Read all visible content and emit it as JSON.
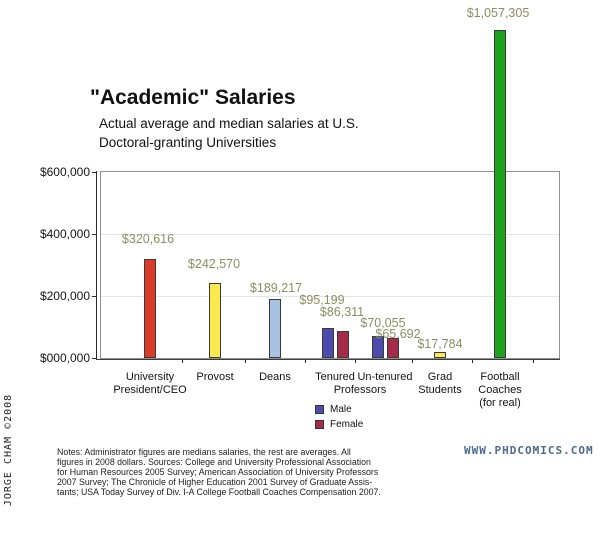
{
  "credit": "JORGE CHAM ©2008",
  "title": "\"Academic\" Salaries",
  "subtitle_lines": [
    "Actual average and median salaries at U.S.",
    "Doctoral-granting Universities"
  ],
  "watermark": "WWW.PHDCOMICS.COM",
  "notes_lines": [
    "Notes: Administrator figures are medians salaries, the rest are averages. All",
    "figures in 2008 dollars. Sources: College and University Professional Association",
    "for Human Resources 2005 Survey; American Association of University Professors",
    "2007 Survey; The Chronicle of Higher Education 2001 Survey of Graduate Assis-",
    "tants; USA Today Survey of Div. I-A College Football Coaches Compensation 2007."
  ],
  "chart_data": {
    "type": "bar",
    "title": "\"Academic\" Salaries",
    "subtitle": "Actual average and median salaries at U.S. Doctoral-granting Universities",
    "xlabel": "",
    "ylabel": "",
    "ylim": [
      0,
      600000
    ],
    "grid": true,
    "gridline_values": [
      200000,
      400000
    ],
    "gridline_color": "#dce5f0",
    "value_label_color": "#8b8e60",
    "legend_position": "below-professors",
    "y_ticks": [
      {
        "label": "$600,000",
        "value": 600000
      },
      {
        "label": "$400,000",
        "value": 400000
      },
      {
        "label": "$200,000",
        "value": 200000
      },
      {
        "label": "$000,000",
        "value": 0
      }
    ],
    "legend": {
      "items": [
        {
          "label": "Male",
          "color": "#4c4cae"
        },
        {
          "label": "Female",
          "color": "#a62b49"
        }
      ]
    },
    "group_span_label": {
      "text": "Professors",
      "spans": [
        "Tenured",
        "Un-tenured"
      ]
    },
    "groups": [
      {
        "category_lines": [
          "University",
          "President/CEO"
        ],
        "bars": [
          {
            "series": null,
            "value": 320616,
            "label": "$320,616",
            "color": "#da3b28"
          }
        ]
      },
      {
        "category_lines": [
          "Provost"
        ],
        "bars": [
          {
            "series": null,
            "value": 242570,
            "label": "$242,570",
            "color": "#fce94f"
          }
        ]
      },
      {
        "category_lines": [
          "Deans"
        ],
        "bars": [
          {
            "series": null,
            "value": 189217,
            "label": "$189,217",
            "color": "#a8c3e2"
          }
        ]
      },
      {
        "category_lines": [
          "Tenured"
        ],
        "bars": [
          {
            "series": "Male",
            "value": 95199,
            "label": "$95,199",
            "color": "#4c4cae"
          },
          {
            "series": "Female",
            "value": 86311,
            "label": "$86,311",
            "color": "#a62b49"
          }
        ]
      },
      {
        "category_lines": [
          "Un-tenured"
        ],
        "bars": [
          {
            "series": "Male",
            "value": 70055,
            "label": "$70,055",
            "color": "#4c4cae"
          },
          {
            "series": "Female",
            "value": 65692,
            "label": "$65,692",
            "color": "#a62b49"
          }
        ]
      },
      {
        "category_lines": [
          "Grad",
          "Students"
        ],
        "bars": [
          {
            "series": null,
            "value": 17784,
            "label": "$17,784",
            "color": "#fce94f"
          }
        ]
      },
      {
        "category_lines": [
          "Football",
          "Coaches",
          "(for real)"
        ],
        "bars": [
          {
            "series": null,
            "value": 1057305,
            "label": "$1,057,305",
            "color": "#1ea21e"
          }
        ]
      }
    ]
  }
}
